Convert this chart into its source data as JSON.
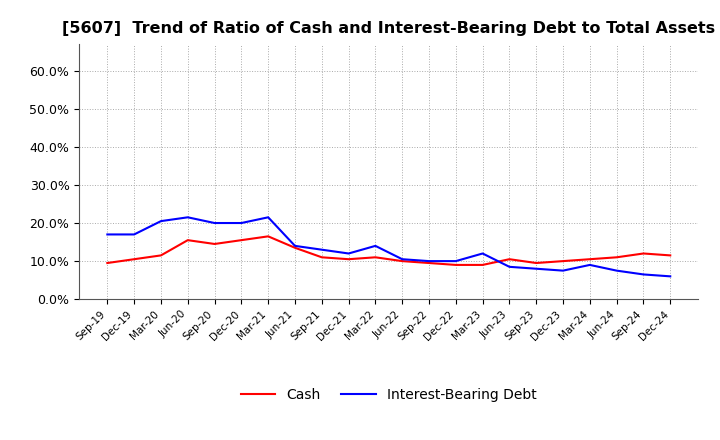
{
  "title": "[5607]  Trend of Ratio of Cash and Interest-Bearing Debt to Total Assets",
  "x_labels": [
    "Sep-19",
    "Dec-19",
    "Mar-20",
    "Jun-20",
    "Sep-20",
    "Dec-20",
    "Mar-21",
    "Jun-21",
    "Sep-21",
    "Dec-21",
    "Mar-22",
    "Jun-22",
    "Sep-22",
    "Dec-22",
    "Mar-23",
    "Jun-23",
    "Sep-23",
    "Dec-23",
    "Mar-24",
    "Jun-24",
    "Sep-24",
    "Dec-24"
  ],
  "cash": [
    9.5,
    10.5,
    11.5,
    15.5,
    14.5,
    15.5,
    16.5,
    13.5,
    11.0,
    10.5,
    11.0,
    10.0,
    9.5,
    9.0,
    9.0,
    10.5,
    9.5,
    10.0,
    10.5,
    11.0,
    12.0,
    11.5
  ],
  "interest_bearing_debt": [
    17.0,
    17.0,
    20.5,
    21.5,
    20.0,
    20.0,
    21.5,
    14.0,
    13.0,
    12.0,
    14.0,
    10.5,
    10.0,
    10.0,
    12.0,
    8.5,
    8.0,
    7.5,
    9.0,
    7.5,
    6.5,
    6.0
  ],
  "cash_color": "#ff0000",
  "ibd_color": "#0000ff",
  "ylim": [
    0,
    67
  ],
  "yticks": [
    0,
    10,
    20,
    30,
    40,
    50,
    60
  ],
  "ytick_labels": [
    "0.0%",
    "10.0%",
    "20.0%",
    "30.0%",
    "40.0%",
    "50.0%",
    "60.0%"
  ],
  "background_color": "#ffffff",
  "plot_bg_color": "#ffffff",
  "grid_color": "#aaaaaa",
  "legend_cash": "Cash",
  "legend_ibd": "Interest-Bearing Debt",
  "title_fontsize": 11.5,
  "line_width": 1.5
}
